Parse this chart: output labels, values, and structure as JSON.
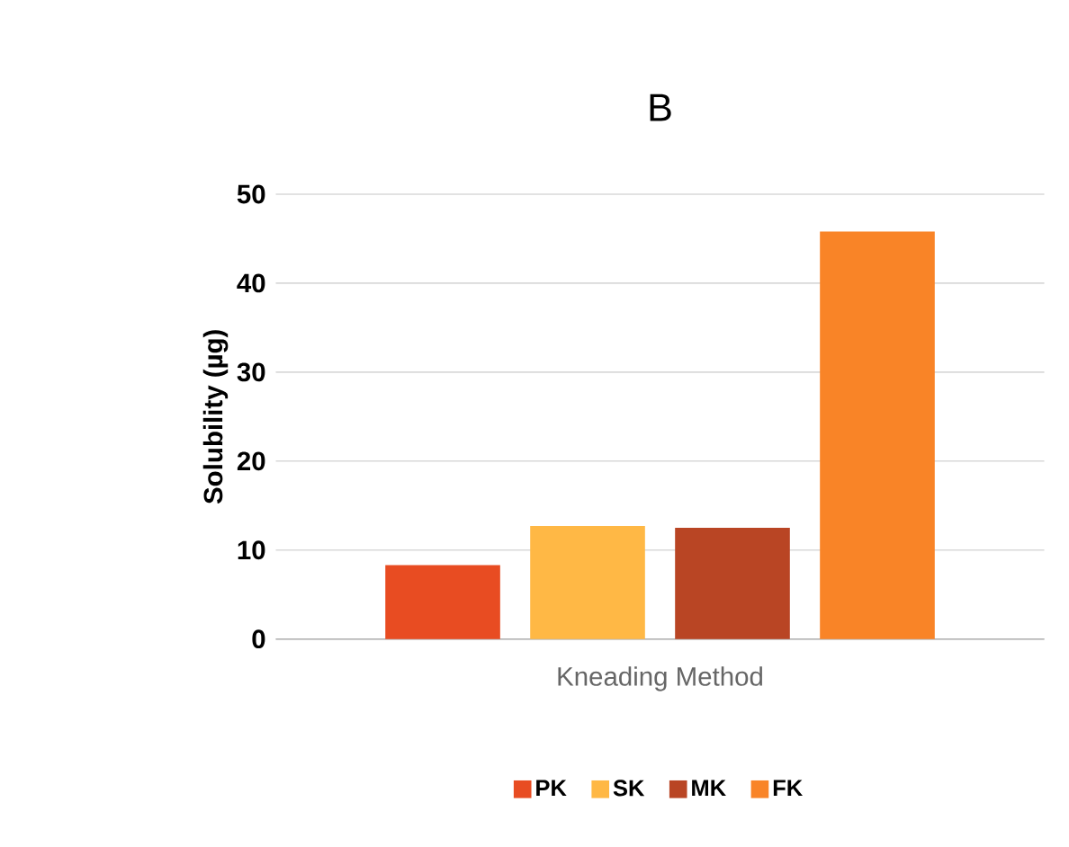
{
  "chart_data": {
    "type": "bar",
    "title": "B",
    "ylabel": "Solubility (µg)",
    "categories": [
      "Kneading Method"
    ],
    "series": [
      {
        "name": "PK",
        "color": "#e84c22",
        "values": [
          8.3
        ]
      },
      {
        "name": "SK",
        "color": "#ffb845",
        "values": [
          12.7
        ]
      },
      {
        "name": "MK",
        "color": "#b94524",
        "values": [
          12.5
        ]
      },
      {
        "name": "FK",
        "color": "#f98427",
        "values": [
          45.8
        ]
      }
    ],
    "ylim": [
      0,
      50
    ],
    "yticks": [
      0,
      10,
      20,
      30,
      40,
      50
    ],
    "grid": "y",
    "legend": "bottom"
  }
}
